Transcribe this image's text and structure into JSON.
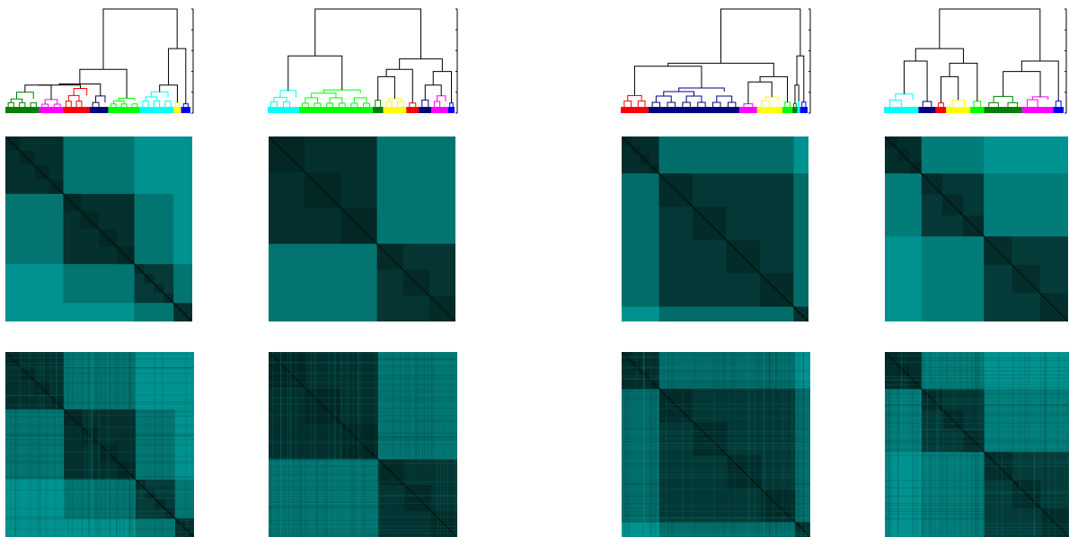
{
  "figure": {
    "columns": [
      {
        "dendrogram": {
          "clusters": [
            {
              "color": "#008000",
              "leaves": 36
            },
            {
              "color": "#ff00ff",
              "leaves": 26
            },
            {
              "color": "#ff0000",
              "leaves": 28
            },
            {
              "color": "#000080",
              "leaves": 20
            },
            {
              "color": "#00ff00",
              "leaves": 34
            },
            {
              "color": "#00ffff",
              "leaves": 36
            },
            {
              "color": "#ffff00",
              "leaves": 8
            },
            {
              "color": "#0000ff",
              "leaves": 10
            }
          ],
          "merge_order": [
            [
              0,
              1,
              0.12
            ],
            [
              8,
              2,
              0.22
            ],
            [
              9,
              3,
              0.28
            ],
            [
              10,
              4,
              0.42
            ],
            [
              5,
              6,
              0.12
            ],
            [
              12,
              7,
              0.62
            ],
            [
              11,
              13,
              1.0
            ]
          ]
        },
        "matrix": {
          "blocks": [
            {
              "size": 0.31,
              "inner": "#04302e"
            },
            {
              "size": 0.38,
              "inner": "#04302e"
            },
            {
              "size": 0.21,
              "inner": "#053a38"
            },
            {
              "size": 0.1,
              "inner": "#06302f"
            }
          ],
          "off_near": "#045c58",
          "off_far": "#009290",
          "sub_blocks": 4
        }
      },
      {
        "dendrogram": {
          "clusters": [
            {
              "color": "#00ffff",
              "leaves": 30
            },
            {
              "color": "#00ff00",
              "leaves": 70
            },
            {
              "color": "#008000",
              "leaves": 10
            },
            {
              "color": "#ffff00",
              "leaves": 22
            },
            {
              "color": "#ff0000",
              "leaves": 12
            },
            {
              "color": "#000080",
              "leaves": 12
            },
            {
              "color": "#ff00ff",
              "leaves": 16
            },
            {
              "color": "#0000ff",
              "leaves": 6
            }
          ],
          "merge_order": [
            [
              0,
              1,
              0.55
            ],
            [
              2,
              3,
              0.35
            ],
            [
              9,
              4,
              0.42
            ],
            [
              5,
              6,
              0.25
            ],
            [
              11,
              7,
              0.4
            ],
            [
              10,
              12,
              0.52
            ],
            [
              8,
              13,
              1.0
            ]
          ]
        },
        "matrix": {
          "blocks": [
            {
              "size": 0.58,
              "inner": "#03302e"
            },
            {
              "size": 0.42,
              "inner": "#043532"
            }
          ],
          "off_near": "#045c58",
          "off_far": "#009290",
          "sub_blocks": 3
        }
      },
      {
        "dendrogram": {
          "clusters": [
            {
              "color": "#ff0000",
              "leaves": 22
            },
            {
              "color": "#000080",
              "leaves": 72
            },
            {
              "color": "#ff00ff",
              "leaves": 14
            },
            {
              "color": "#ffff00",
              "leaves": 20
            },
            {
              "color": "#00ff00",
              "leaves": 8
            },
            {
              "color": "#008000",
              "leaves": 4
            },
            {
              "color": "#00ffff",
              "leaves": 2
            },
            {
              "color": "#0000ff",
              "leaves": 6
            }
          ],
          "merge_order": [
            [
              0,
              1,
              0.45
            ],
            [
              2,
              3,
              0.3
            ],
            [
              9,
              4,
              0.35
            ],
            [
              8,
              10,
              0.48
            ],
            [
              5,
              6,
              0.22
            ],
            [
              12,
              7,
              0.55
            ],
            [
              11,
              13,
              1.0
            ]
          ]
        },
        "matrix": {
          "blocks": [
            {
              "size": 0.2,
              "inner": "#032e2c"
            },
            {
              "size": 0.72,
              "inner": "#043836"
            },
            {
              "size": 0.08,
              "inner": "#05302e"
            }
          ],
          "off_near": "#034c48",
          "off_far": "#009290",
          "sub_blocks": 4
        }
      },
      {
        "dendrogram": {
          "clusters": [
            {
              "color": "#00ffff",
              "leaves": 20
            },
            {
              "color": "#000080",
              "leaves": 10
            },
            {
              "color": "#ff0000",
              "leaves": 6
            },
            {
              "color": "#ffff00",
              "leaves": 14
            },
            {
              "color": "#00ff00",
              "leaves": 8
            },
            {
              "color": "#008000",
              "leaves": 22
            },
            {
              "color": "#ff00ff",
              "leaves": 18
            },
            {
              "color": "#0000ff",
              "leaves": 6
            }
          ],
          "merge_order": [
            [
              0,
              1,
              0.5
            ],
            [
              2,
              3,
              0.35
            ],
            [
              9,
              4,
              0.48
            ],
            [
              8,
              10,
              0.62
            ],
            [
              5,
              6,
              0.4
            ],
            [
              12,
              7,
              0.5
            ],
            [
              11,
              13,
              1.0
            ]
          ]
        },
        "matrix": {
          "blocks": [
            {
              "size": 0.2,
              "inner": "#032e2c"
            },
            {
              "size": 0.34,
              "inner": "#043836"
            },
            {
              "size": 0.46,
              "inner": "#053c3a"
            }
          ],
          "off_near": "#046a66",
          "off_far": "#009290",
          "sub_blocks": 3
        }
      }
    ]
  }
}
